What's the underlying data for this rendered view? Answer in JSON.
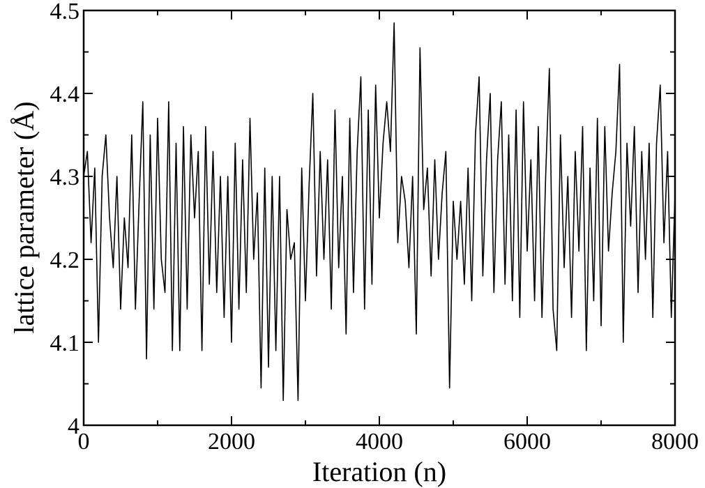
{
  "chart_data": {
    "type": "line",
    "xlabel": "Iteration (n)",
    "ylabel": "lattice parameter (Å)",
    "xlim": [
      0,
      8000
    ],
    "ylim": [
      4,
      4.5
    ],
    "xticks": [
      0,
      2000,
      4000,
      6000,
      8000
    ],
    "yticks": [
      4,
      4.1,
      4.2,
      4.3,
      4.4,
      4.5
    ],
    "xminorticks": [
      1000,
      3000,
      5000,
      7000
    ],
    "yminorticks": [
      4.05,
      4.15,
      4.25,
      4.35,
      4.45
    ],
    "grid": false,
    "series": [
      {
        "color": "#000000",
        "x": [
          0,
          50,
          100,
          150,
          200,
          250,
          300,
          350,
          400,
          450,
          500,
          550,
          600,
          650,
          700,
          750,
          800,
          850,
          900,
          950,
          1000,
          1050,
          1100,
          1150,
          1200,
          1250,
          1300,
          1350,
          1400,
          1450,
          1500,
          1550,
          1600,
          1650,
          1700,
          1750,
          1800,
          1850,
          1900,
          1950,
          2000,
          2050,
          2100,
          2150,
          2200,
          2250,
          2300,
          2350,
          2400,
          2450,
          2500,
          2550,
          2600,
          2650,
          2700,
          2750,
          2800,
          2850,
          2900,
          2950,
          3000,
          3050,
          3100,
          3150,
          3200,
          3250,
          3300,
          3350,
          3400,
          3450,
          3500,
          3550,
          3600,
          3650,
          3700,
          3750,
          3800,
          3850,
          3900,
          3950,
          4000,
          4050,
          4100,
          4150,
          4200,
          4250,
          4300,
          4350,
          4400,
          4450,
          4500,
          4550,
          4600,
          4650,
          4700,
          4750,
          4800,
          4850,
          4900,
          4950,
          5000,
          5050,
          5100,
          5150,
          5200,
          5250,
          5300,
          5350,
          5400,
          5450,
          5500,
          5550,
          5600,
          5650,
          5700,
          5750,
          5800,
          5850,
          5900,
          5950,
          6000,
          6050,
          6100,
          6150,
          6200,
          6250,
          6300,
          6350,
          6400,
          6450,
          6500,
          6550,
          6600,
          6650,
          6700,
          6750,
          6800,
          6850,
          6900,
          6950,
          7000,
          7050,
          7100,
          7150,
          7200,
          7250,
          7300,
          7350,
          7400,
          7450,
          7500,
          7550,
          7600,
          7650,
          7700,
          7750,
          7800,
          7850,
          7900,
          7950,
          8000
        ],
        "values": [
          4.3,
          4.33,
          4.22,
          4.31,
          4.1,
          4.3,
          4.35,
          4.25,
          4.19,
          4.3,
          4.14,
          4.25,
          4.19,
          4.35,
          4.14,
          4.27,
          4.39,
          4.08,
          4.35,
          4.14,
          4.37,
          4.2,
          4.16,
          4.39,
          4.09,
          4.34,
          4.09,
          4.36,
          4.14,
          4.35,
          4.25,
          4.33,
          4.09,
          4.36,
          4.17,
          4.33,
          4.16,
          4.3,
          4.13,
          4.3,
          4.1,
          4.34,
          4.14,
          4.32,
          4.16,
          4.37,
          4.2,
          4.28,
          4.045,
          4.31,
          4.07,
          4.3,
          4.09,
          4.3,
          4.03,
          4.26,
          4.2,
          4.22,
          4.03,
          4.31,
          4.15,
          4.29,
          4.4,
          4.18,
          4.33,
          4.2,
          4.32,
          4.14,
          4.38,
          4.19,
          4.3,
          4.11,
          4.37,
          4.16,
          4.33,
          4.42,
          4.14,
          4.38,
          4.17,
          4.41,
          4.25,
          4.34,
          4.39,
          4.33,
          4.485,
          4.22,
          4.3,
          4.27,
          4.19,
          4.3,
          4.11,
          4.455,
          4.26,
          4.31,
          4.18,
          4.32,
          4.2,
          4.28,
          4.33,
          4.045,
          4.27,
          4.2,
          4.27,
          4.17,
          4.31,
          4.15,
          4.35,
          4.42,
          4.18,
          4.32,
          4.4,
          4.16,
          4.32,
          4.39,
          4.17,
          4.35,
          4.15,
          4.38,
          4.13,
          4.39,
          4.21,
          4.32,
          4.15,
          4.36,
          4.13,
          4.3,
          4.43,
          4.14,
          4.09,
          4.35,
          4.19,
          4.3,
          4.13,
          4.33,
          4.21,
          4.36,
          4.09,
          4.31,
          4.15,
          4.37,
          4.12,
          4.36,
          4.21,
          4.28,
          4.33,
          4.435,
          4.1,
          4.34,
          4.24,
          4.36,
          4.16,
          4.33,
          4.2,
          4.34,
          4.13,
          4.34,
          4.41,
          4.22,
          4.33,
          4.13,
          4.28
        ]
      }
    ]
  }
}
